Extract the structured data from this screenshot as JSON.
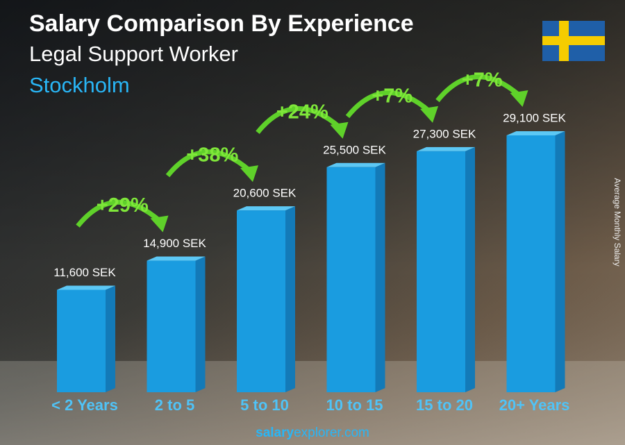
{
  "chart_data": {
    "type": "bar3d",
    "title": "Salary Comparison By Experience",
    "subtitle": "Legal Support Worker",
    "location": "Stockholm",
    "y_label": "Average Monthly Salary",
    "categories": [
      "< 2 Years",
      "2 to 5",
      "5 to 10",
      "10 to 15",
      "15 to 20",
      "20+ Years"
    ],
    "values": [
      11600,
      14900,
      20600,
      25500,
      27300,
      29100
    ],
    "value_labels": [
      "11,600 SEK",
      "14,900 SEK",
      "20,600 SEK",
      "25,500 SEK",
      "27,300 SEK",
      "29,100 SEK"
    ],
    "changes": [
      "+29%",
      "+38%",
      "+24%",
      "+7%",
      "+7%"
    ],
    "color": "#1a9ce0",
    "footer": {
      "brand": "salary",
      "rest": "explorer.com"
    }
  }
}
